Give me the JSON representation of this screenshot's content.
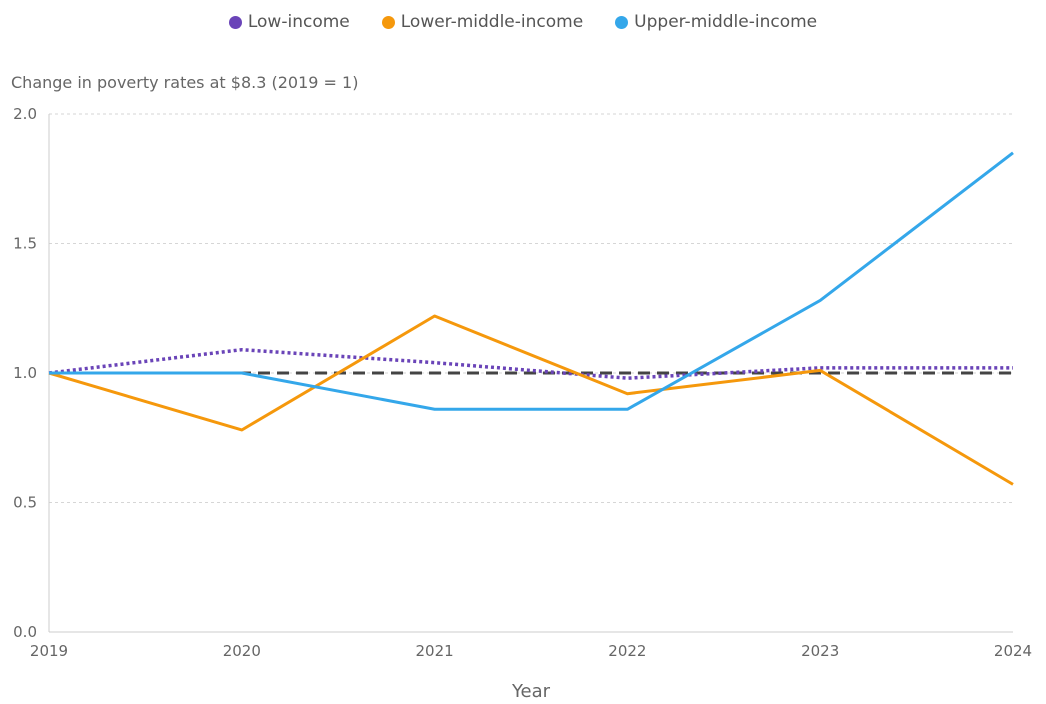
{
  "chart_data": {
    "type": "line",
    "title": "",
    "ylabel": "Change in poverty rates at $8.3 (2019 = 1)",
    "xlabel": "Year",
    "x": [
      2019,
      2020,
      2021,
      2022,
      2023,
      2024
    ],
    "x_tick_labels": [
      "2019",
      "2020",
      "2021",
      "2022",
      "2023",
      "2024"
    ],
    "ylim": [
      0,
      2
    ],
    "y_ticks": [
      0,
      0.5,
      1,
      1.5,
      2
    ],
    "y_tick_labels": [
      "0.0",
      "0.5",
      "1.0",
      "1.5",
      "2.0"
    ],
    "grid": true,
    "legend_position": "top-center",
    "reference_line": {
      "y": 1,
      "style": "dashed",
      "color": "#444444"
    },
    "series": [
      {
        "name": "Low-income",
        "color": "#6a44b8",
        "style": "dotted",
        "values": [
          1.0,
          1.09,
          1.04,
          0.98,
          1.02,
          1.02
        ]
      },
      {
        "name": "Lower-middle-income",
        "color": "#f5980c",
        "style": "solid",
        "values": [
          1.0,
          0.78,
          1.22,
          0.92,
          1.01,
          0.57
        ]
      },
      {
        "name": "Upper-middle-income",
        "color": "#34a7ea",
        "style": "solid",
        "values": [
          1.0,
          1.0,
          0.86,
          0.86,
          1.28,
          1.85
        ]
      }
    ]
  }
}
